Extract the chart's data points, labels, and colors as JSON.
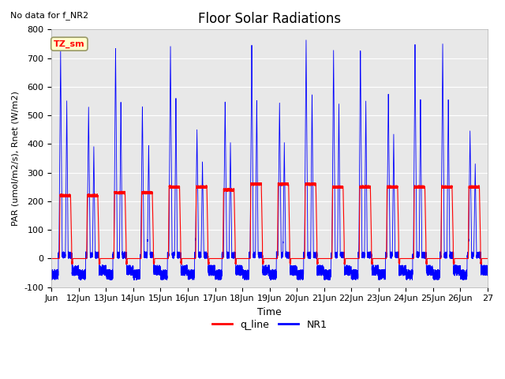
{
  "title": "Floor Solar Radiations",
  "subtitle": "No data for f_NR2",
  "xlabel": "Time",
  "ylabel": "PAR (umol/m2/s), Rnet (W/m2)",
  "ylim": [
    -100,
    800
  ],
  "xtick_labels": [
    "Jun",
    "12Jun",
    "13Jun",
    "14Jun",
    "15Jun",
    "16Jun",
    "17Jun",
    "18Jun",
    "19Jun",
    "20Jun",
    "21Jun",
    "22Jun",
    "23Jun",
    "24Jun",
    "25Jun",
    "26Jun",
    "27"
  ],
  "xtick_positions": [
    0,
    1,
    2,
    3,
    4,
    5,
    6,
    7,
    8,
    9,
    10,
    11,
    12,
    13,
    14,
    15,
    16
  ],
  "ytick_positions": [
    -100,
    0,
    100,
    200,
    300,
    400,
    500,
    600,
    700,
    800
  ],
  "legend_box_label": "TZ_sm",
  "legend_box_color": "#ffffcc",
  "legend_box_border": "#999966",
  "line1_color": "red",
  "line1_label": "q_line",
  "line2_color": "blue",
  "line2_label": "NR1",
  "bg_color": "#e8e8e8",
  "n_days": 16,
  "pts_per_day": 480,
  "nr1_peak_vals": [
    740,
    530,
    740,
    535,
    750,
    455,
    550,
    750,
    545,
    775,
    730,
    735,
    580,
    755,
    750,
    448
  ],
  "q_peak_vals": [
    220,
    220,
    230,
    230,
    250,
    250,
    240,
    260,
    260,
    260,
    250,
    250,
    250,
    250,
    250,
    250
  ],
  "nr1_neg_depth": -75,
  "q_neg_val": -20,
  "title_fontsize": 12,
  "label_fontsize": 8,
  "tick_fontsize": 8
}
